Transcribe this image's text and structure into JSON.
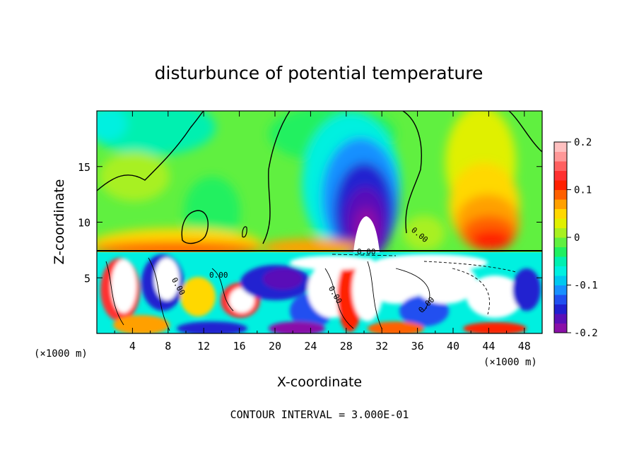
{
  "chart_data": {
    "type": "heatmap",
    "title": "disturbunce of potential temperature",
    "xlabel": "X-coordinate",
    "ylabel": "Z-coordinate",
    "x_unit": "(×1000 m)",
    "x_unit_right": "(×1000 m)",
    "footer": "CONTOUR INTERVAL = 3.000E-01",
    "x_ticks": [
      "4",
      "8",
      "12",
      "16",
      "20",
      "24",
      "28",
      "32",
      "36",
      "40",
      "44",
      "48"
    ],
    "y_ticks": [
      "5",
      "10",
      "15"
    ],
    "xlim": [
      0,
      50
    ],
    "ylim": [
      0,
      20
    ],
    "colorbar": {
      "range": [
        -0.2,
        0.2
      ],
      "tick_labels": [
        "0.2",
        "0.1",
        "0",
        "-0.1",
        "-0.2"
      ],
      "colors": [
        "#8a10a8",
        "#5a10b8",
        "#2020d0",
        "#2050f0",
        "#1890ff",
        "#00c8f0",
        "#00f0e0",
        "#00f0b0",
        "#20f060",
        "#60f040",
        "#a8f020",
        "#e0f000",
        "#ffd800",
        "#ffa000",
        "#ff6000",
        "#ff2000",
        "#ff3030",
        "#ff6060",
        "#ff9898",
        "#ffc0c0"
      ]
    },
    "contour_labels": [
      "0.00",
      "0.00",
      "0.00",
      "0.00",
      "0.00",
      "0.00"
    ]
  }
}
